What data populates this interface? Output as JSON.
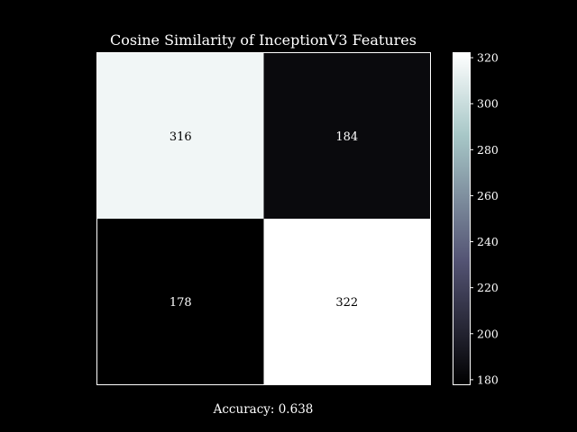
{
  "chart_data": {
    "type": "heatmap",
    "title": "Cosine Similarity of InceptionV3 Features",
    "xlabel": "Accuracy: 0.638",
    "ylabel": "",
    "rows": 2,
    "cols": 2,
    "values": [
      [
        316,
        184
      ],
      [
        178,
        322
      ]
    ],
    "colorbar": {
      "min": 178,
      "max": 322,
      "ticks": [
        180,
        200,
        220,
        240,
        260,
        280,
        300,
        320
      ],
      "colormap": "bone"
    },
    "cell_label_color": "#000000",
    "text_color": "#ffffff",
    "grid": false
  }
}
